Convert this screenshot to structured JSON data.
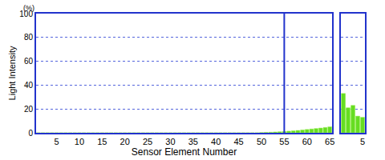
{
  "chart_data": [
    {
      "type": "bar",
      "xlabel": "Sensor Element Number",
      "ylabel": "Light Intensity",
      "annotations": [
        {
          "text": "(%)"
        }
      ],
      "x": [
        1,
        2,
        3,
        4,
        5,
        6,
        7,
        8,
        9,
        10,
        11,
        12,
        13,
        14,
        15,
        16,
        17,
        18,
        19,
        20,
        21,
        22,
        23,
        24,
        25,
        26,
        27,
        28,
        29,
        30,
        31,
        32,
        33,
        34,
        35,
        36,
        37,
        38,
        39,
        40,
        41,
        42,
        43,
        44,
        45,
        46,
        47,
        48,
        49,
        50,
        51,
        52,
        53,
        54,
        55,
        56,
        57,
        58,
        59,
        60,
        61,
        62,
        63,
        64,
        65
      ],
      "values": [
        0,
        0,
        0,
        0,
        0,
        0,
        0,
        0,
        0,
        0,
        0,
        0,
        0,
        0,
        0,
        0,
        0,
        0,
        0,
        0,
        0,
        0,
        0,
        0,
        0,
        0,
        0,
        0,
        0,
        0,
        0,
        0,
        0,
        0,
        0,
        0,
        0,
        0,
        0,
        0,
        0,
        0,
        0,
        0,
        0,
        0,
        0,
        0,
        0,
        0.2,
        0.4,
        0.5,
        0.7,
        0.9,
        1.1,
        1.4,
        1.7,
        2.0,
        2.4,
        2.8,
        3.2,
        3.6,
        4.0,
        4.5,
        5.0
      ],
      "xlim": [
        0.5,
        65.5
      ],
      "xticks": [
        5,
        10,
        15,
        20,
        25,
        30,
        35,
        40,
        45,
        50,
        55,
        60,
        65
      ],
      "ylim": [
        0,
        100
      ],
      "yticks": [
        0,
        20,
        40,
        60,
        80,
        100
      ],
      "reference_lines": [
        {
          "x": 55
        }
      ],
      "color": "#66dd22",
      "grid": true
    },
    {
      "type": "bar",
      "x": [
        1,
        2,
        3,
        4,
        5
      ],
      "values": [
        33,
        21,
        23,
        14,
        13
      ],
      "xlim": [
        0.5,
        5.5
      ],
      "xticks": [
        5
      ],
      "ylim": [
        0,
        100
      ],
      "yticks": [
        0,
        20,
        40,
        60,
        80,
        100
      ],
      "tick_labels": "x",
      "color": "#66dd22",
      "grid": true
    }
  ]
}
